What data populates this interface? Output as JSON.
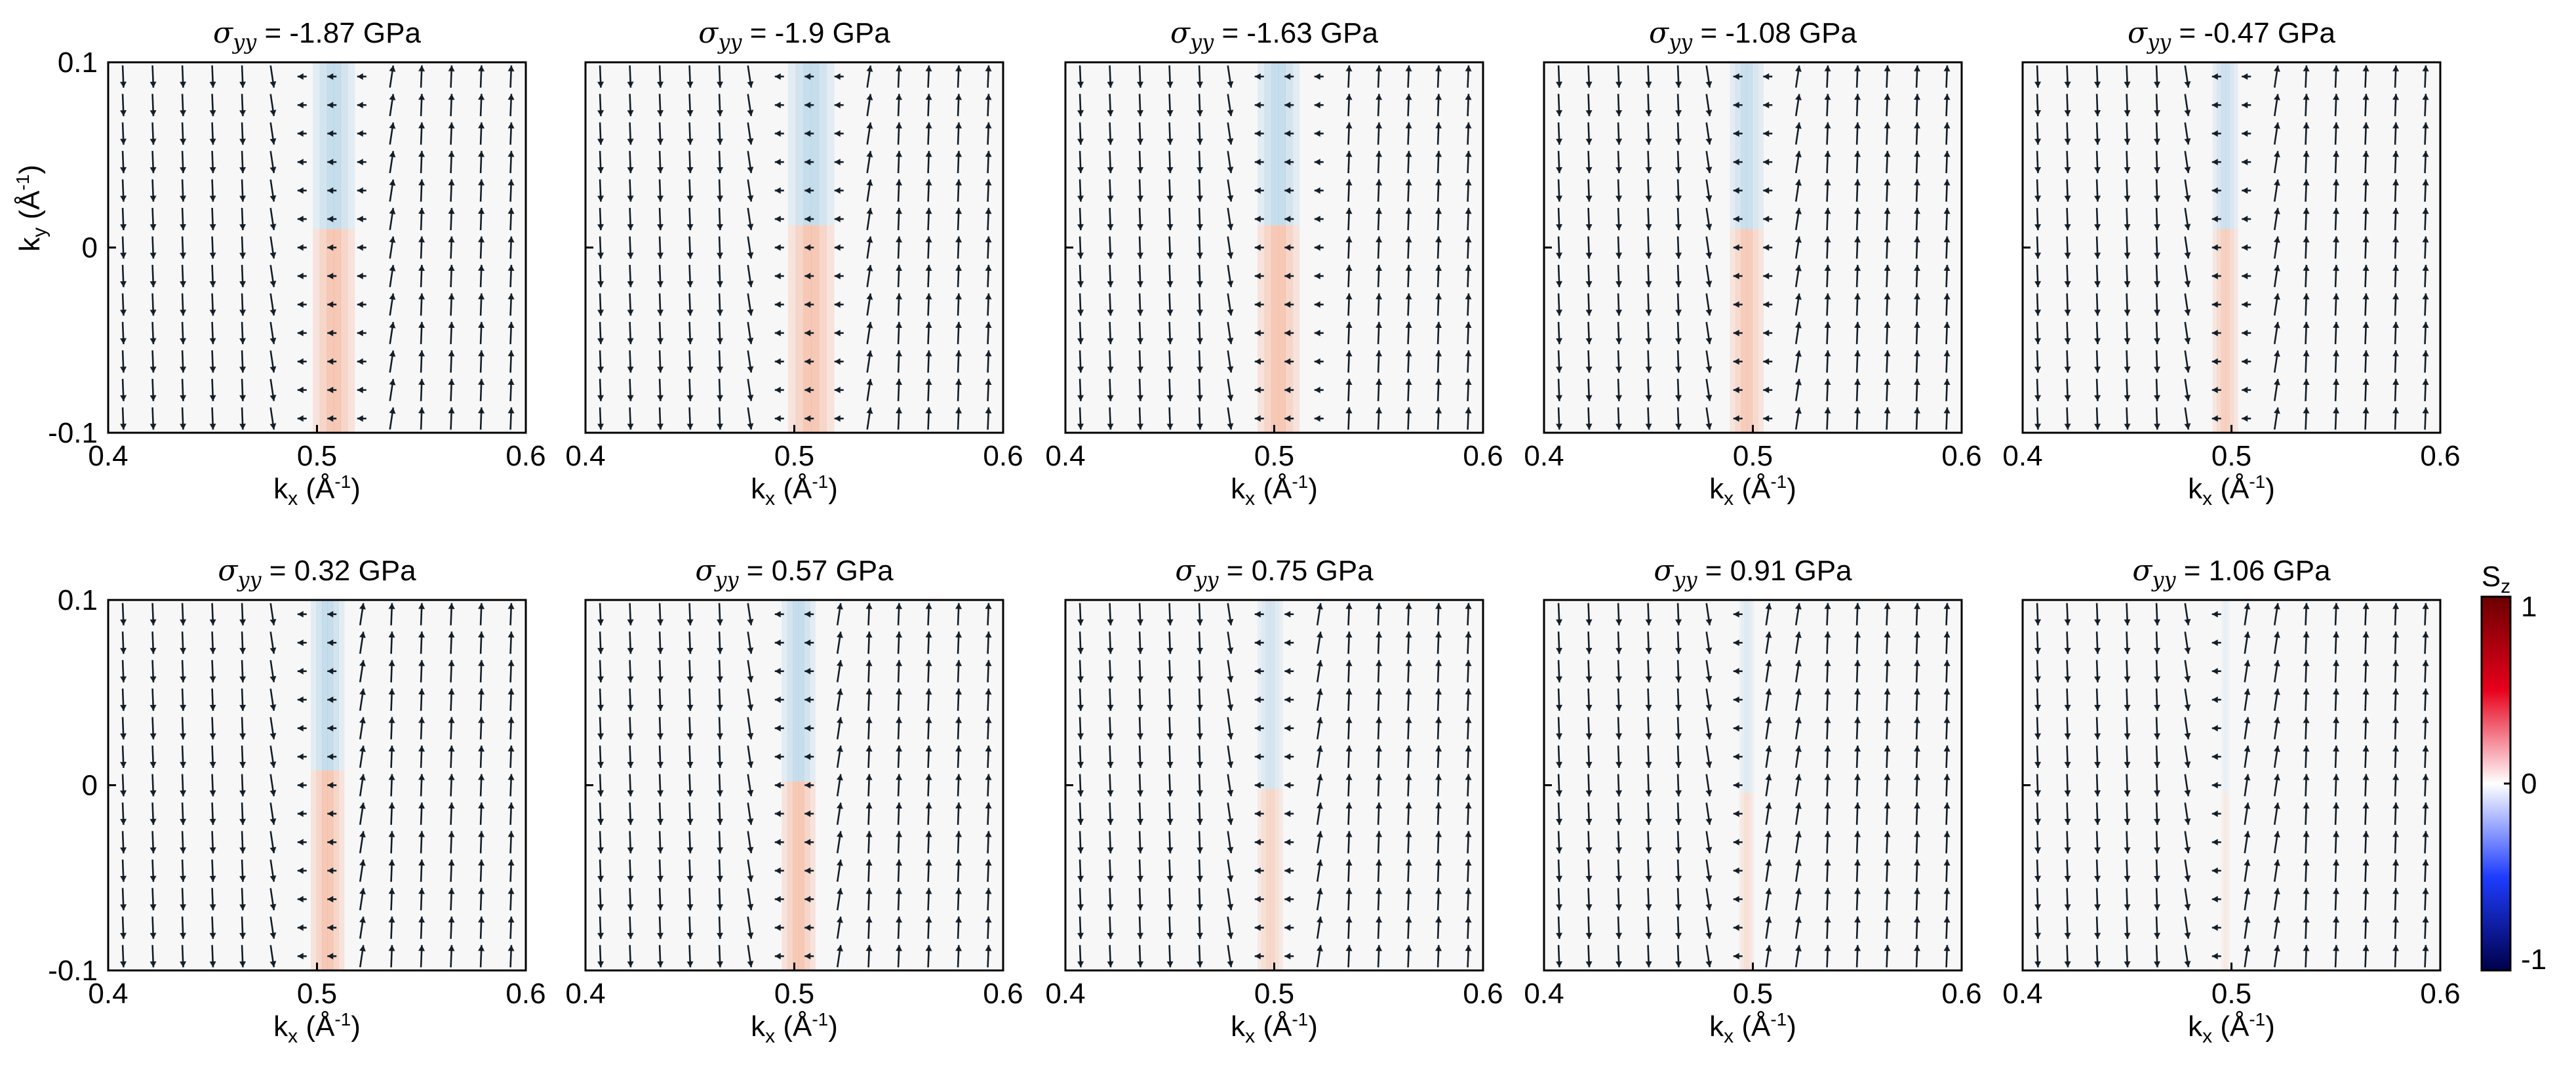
{
  "chart_data": {
    "type": "quiver",
    "panel_titles": [
      "-1.87",
      "-1.9",
      "-1.63",
      "-1.08",
      "-0.47",
      "0.32",
      "0.57",
      "0.75",
      "0.91",
      "1.06"
    ],
    "title_prefix": "σ",
    "title_subscript": "yy",
    "title_equals": "=",
    "title_unit": "GPa",
    "stress_values_gpa": [
      -1.87,
      -1.9,
      -1.63,
      -1.08,
      -0.47,
      0.32,
      0.57,
      0.75,
      0.91,
      1.06
    ],
    "kx_band_center": [
      0.508,
      0.508,
      0.502,
      0.497,
      0.497,
      0.505,
      0.502,
      0.498,
      0.497,
      0.497
    ],
    "band_width": [
      0.02,
      0.022,
      0.02,
      0.016,
      0.012,
      0.016,
      0.016,
      0.012,
      0.007,
      0.004
    ],
    "band_intensity": [
      0.22,
      0.22,
      0.22,
      0.2,
      0.18,
      0.22,
      0.22,
      0.15,
      0.1,
      0.05
    ],
    "band_split_ky": [
      0.01,
      0.012,
      0.012,
      0.01,
      0.01,
      0.008,
      0.002,
      -0.002,
      -0.004,
      -0.004
    ],
    "xlim": [
      0.4,
      0.6
    ],
    "ylim": [
      -0.1,
      0.1
    ],
    "x_ticks": [
      0.4,
      0.5,
      0.6
    ],
    "x_tick_labels": [
      "0.4",
      "0.5",
      "0.6"
    ],
    "y_ticks": [
      0.1,
      0,
      -0.1
    ],
    "y_tick_labels": [
      "0.1",
      "0",
      "-0.1"
    ],
    "xlabel": {
      "main": "k",
      "sub": "x",
      "unit_open": " (Å",
      "unit_sup": "-1",
      "unit_close": ")"
    },
    "ylabel": {
      "main": "k",
      "sub": "y",
      "unit_open": " (Å",
      "unit_sup": "-1",
      "unit_close": ")"
    },
    "arrow_grid": {
      "nx": 14,
      "ny": 13
    },
    "colorbar": {
      "label_main": "S",
      "label_sub": "z",
      "ticks": [
        1,
        0,
        -1
      ],
      "tick_labels": [
        "1",
        "0",
        "-1"
      ],
      "range": [
        -1,
        1
      ],
      "colors": {
        "max": "#6b0000",
        "pos": "#e8001c",
        "zero": "#ffffff",
        "neg": "#1e3cff",
        "min": "#00004a"
      }
    },
    "colors": {
      "background": "#f7f7f7",
      "positive_sz": "#f5a27f",
      "negative_sz": "#9cc7e3",
      "arrow": "#141e28",
      "axis": "#000000"
    }
  }
}
